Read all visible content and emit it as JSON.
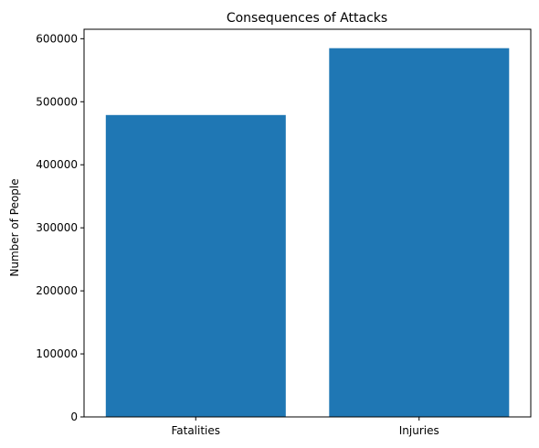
{
  "chart_data": {
    "type": "bar",
    "title": "Consequences of Attacks",
    "xlabel": "",
    "ylabel": "Number of People",
    "categories": [
      "Fatalities",
      "Injuries"
    ],
    "values": [
      479000,
      585000
    ],
    "ylim": [
      0,
      615000
    ],
    "yticks": [
      0,
      100000,
      200000,
      300000,
      400000,
      500000,
      600000
    ],
    "ytick_labels": [
      "0",
      "100000",
      "200000",
      "300000",
      "400000",
      "500000",
      "600000"
    ],
    "bar_color": "#1f77b4",
    "grid": false
  }
}
